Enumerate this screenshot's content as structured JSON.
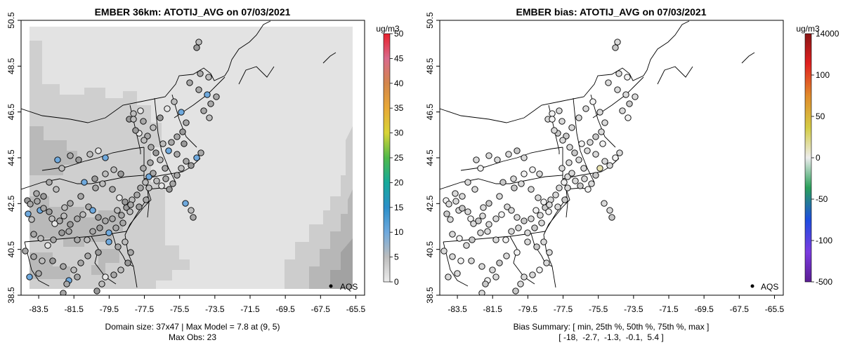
{
  "chart_data": [
    {
      "type": "heatmap",
      "title": "EMBER 36km: ATOTIJ_AVG on 07/03/2021",
      "colorbar": {
        "unit_label": "ug/m3",
        "ticks": [
          0,
          5,
          10,
          15,
          20,
          25,
          30,
          35,
          40,
          45,
          50
        ],
        "range": [
          0,
          50
        ]
      },
      "x_ticks": [
        "-83.5",
        "-81.5",
        "-79.5",
        "-77.5",
        "-75.5",
        "-73.5",
        "-71.5",
        "-69.5",
        "-67.5",
        "-65.5"
      ],
      "y_ticks": [
        "38.5",
        "40.5",
        "42.5",
        "44.5",
        "46.5",
        "48.5",
        "50.5"
      ],
      "xlim": [
        -84.5,
        -65.0
      ],
      "ylim": [
        38.5,
        50.5
      ],
      "legend": {
        "marker": "dot",
        "label": "AQS",
        "position": "bottom-right"
      },
      "footer": [
        "Domain size: 37x47 | Max Model = 7.8 at (9, 5)",
        "Max Obs: 23"
      ]
    },
    {
      "type": "scatter",
      "title": "EMBER bias: ATOTIJ_AVG on 07/03/2021",
      "colorbar": {
        "unit_label": "ug/m3",
        "ticks": [
          -500,
          -100,
          -50,
          0,
          50,
          100,
          14000
        ],
        "tick_labels": [
          "-500",
          "-100",
          "-50",
          "0",
          "50",
          "100",
          "14000"
        ],
        "range": [
          -500,
          14000
        ]
      },
      "x_ticks": [
        "-83.5",
        "-81.5",
        "-79.5",
        "-77.5",
        "-75.5",
        "-73.5",
        "-71.5",
        "-69.5",
        "-67.5",
        "-65.5"
      ],
      "y_ticks": [
        "38.5",
        "40.5",
        "42.5",
        "44.5",
        "46.5",
        "48.5",
        "50.5"
      ],
      "xlim": [
        -84.5,
        -65.0
      ],
      "ylim": [
        38.5,
        50.5
      ],
      "legend": {
        "marker": "dot",
        "label": "AQS",
        "position": "bottom-right"
      },
      "footer": [
        "Bias Summary: [ min, 25th %, 50th %, 75th %, max ]",
        "[ -18,  -2.7,  -1.3,  -0.1,  5.4 ]"
      ],
      "bias_summary": {
        "min": -18,
        "p25": -2.7,
        "p50": -1.3,
        "p75": -0.1,
        "max": 5.4
      }
    }
  ],
  "colors": {
    "background_field": "#e3e3e3",
    "grid_mid": "#cfcfcf",
    "grid_dark": "#b4b4b4",
    "grid_darker": "#9d9d9d",
    "obs_blue": "#6fa9dd",
    "obs_light": "#d8d8d8"
  }
}
